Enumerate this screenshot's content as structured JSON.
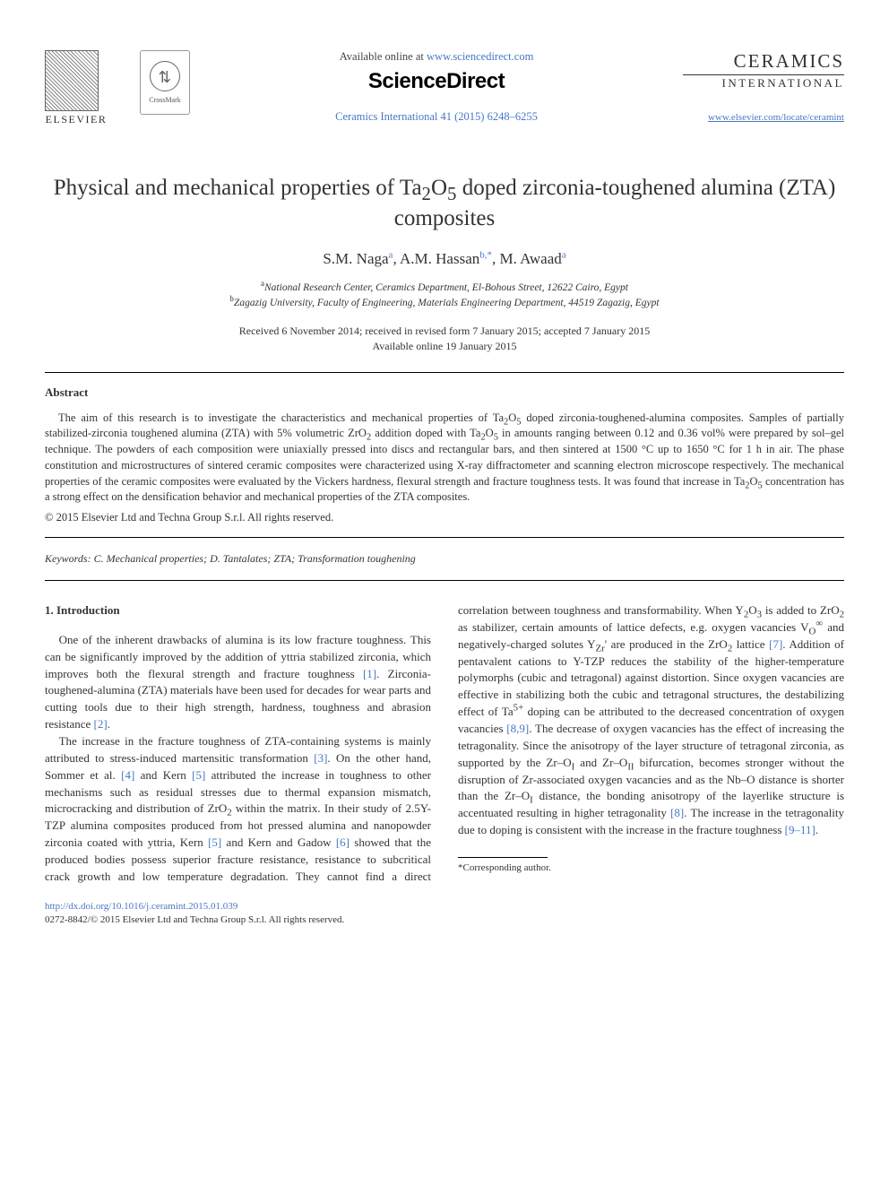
{
  "header": {
    "elsevier_label": "ELSEVIER",
    "crossmark_label": "CrossMark",
    "available_online_prefix": "Available online at ",
    "available_online_url": "www.sciencedirect.com",
    "sciencedirect": "ScienceDirect",
    "journal_reference": "Ceramics International 41 (2015) 6248–6255",
    "ceramics_title": "CERAMICS",
    "ceramics_sub": "INTERNATIONAL",
    "journal_link": "www.elsevier.com/locate/ceramint"
  },
  "article": {
    "title_html": "Physical and mechanical properties of Ta<sub>2</sub>O<sub>5</sub> doped zirconia-toughened alumina (ZTA) composites",
    "authors_html": "S.M. Naga<sup class=\"aff-link\">a</sup>, A.M. Hassan<sup class=\"aff-link\">b,</sup><sup class=\"corr\">*</sup>, M. Awaad<sup class=\"aff-link\">a</sup>",
    "affiliations": [
      "<sup>a</sup>National Research Center, Ceramics Department, El-Bohous Street, 12622 Cairo, Egypt",
      "<sup>b</sup>Zagazig University, Faculty of Engineering, Materials Engineering Department, 44519 Zagazig, Egypt"
    ],
    "dates_line1": "Received 6 November 2014; received in revised form 7 January 2015; accepted 7 January 2015",
    "dates_line2": "Available online 19 January 2015"
  },
  "abstract": {
    "heading": "Abstract",
    "body_html": "The aim of this research is to investigate the characteristics and mechanical properties of Ta<sub>2</sub>O<sub>5</sub> doped zirconia-toughened-alumina composites. Samples of partially stabilized-zirconia toughened alumina (ZTA) with 5% volumetric ZrO<sub>2</sub> addition doped with Ta<sub>2</sub>O<sub>5</sub> in amounts ranging between 0.12 and 0.36 vol% were prepared by sol–gel technique. The powders of each composition were uniaxially pressed into discs and rectangular bars, and then sintered at 1500 °C up to 1650 °C for 1 h in air. The phase constitution and microstructures of sintered ceramic composites were characterized using X-ray diffractometer and scanning electron microscope respectively. The mechanical properties of the ceramic composites were evaluated by the Vickers hardness, flexural strength and fracture toughness tests. It was found that increase in Ta<sub>2</sub>O<sub>5</sub> concentration has a strong effect on the densification behavior and mechanical properties of the ZTA composites.",
    "copyright": "© 2015 Elsevier Ltd and Techna Group S.r.l. All rights reserved."
  },
  "keywords": {
    "label": "Keywords:",
    "text": " C. Mechanical properties; D. Tantalates; ZTA; Transformation toughening"
  },
  "introduction": {
    "heading": "1. Introduction",
    "paragraphs_html": [
      "One of the inherent drawbacks of alumina is its low fracture toughness. This can be significantly improved by the addition of yttria stabilized zirconia, which improves both the flexural strength and fracture toughness <span class=\"ref-link\">[1]</span>. Zirconia-toughened-alumina (ZTA) materials have been used for decades for wear parts and cutting tools due to their high strength, hardness, toughness and abrasion resistance <span class=\"ref-link\">[2]</span>.",
      "The increase in the fracture toughness of ZTA-containing systems is mainly attributed to stress-induced martensitic transformation <span class=\"ref-link\">[3]</span>. On the other hand, Sommer et al. <span class=\"ref-link\">[4]</span> and Kern <span class=\"ref-link\">[5]</span> attributed the increase in toughness to other mechanisms such as residual stresses due to thermal expansion mismatch, microcracking and distribution of ZrO<sub>2</sub> within the matrix. In their study of 2.5Y-TZP alumina composites produced from hot pressed alumina and nanopowder zirconia coated with yttria, Kern <span class=\"ref-link\">[5]</span> and Kern and Gadow <span class=\"ref-link\">[6]</span> showed that the produced bodies possess superior fracture resistance, resistance to subcritical crack growth and low temperature degradation. They cannot find a direct correlation between toughness and transformability. When Y<sub>2</sub>O<sub>3</sub> is added to ZrO<sub>2</sub> as stabilizer, certain amounts of lattice defects, e.g. oxygen vacancies V<sub>O</sub><sup>∞</sup> and negatively-charged solutes Y<sub>Zr</sub>' are produced in the ZrO<sub>2</sub> lattice <span class=\"ref-link\">[7]</span>. Addition of pentavalent cations to Y-TZP reduces the stability of the higher-temperature polymorphs (cubic and tetragonal) against distortion. Since oxygen vacancies are effective in stabilizing both the cubic and tetragonal structures, the destabilizing effect of Ta<sup>5+</sup> doping can be attributed to the decreased concentration of oxygen vacancies <span class=\"ref-link\">[8,9]</span>. The decrease of oxygen vacancies has the effect of increasing the tetragonality. Since the anisotropy of the layer structure of tetragonal zirconia, as supported by the Zr–O<sub>I</sub> and Zr–O<sub>II</sub> bifurcation, becomes stronger without the disruption of Zr-associated oxygen vacancies and as the Nb–O distance is shorter than the Zr–O<sub>I</sub> distance, the bonding anisotropy of the layerlike structure is accentuated resulting in higher tetragonality <span class=\"ref-link\">[8]</span>. The increase in the tetragonality due to doping is consistent with the increase in the fracture toughness <span class=\"ref-link\">[9–11]</span>."
    ]
  },
  "footnote": {
    "corresponding": "*Corresponding author."
  },
  "footer": {
    "doi": "http://dx.doi.org/10.1016/j.ceramint.2015.01.039",
    "issn_copyright": "0272-8842/© 2015 Elsevier Ltd and Techna Group S.r.l. All rights reserved."
  },
  "colors": {
    "link": "#4878c0",
    "text": "#333333",
    "rule": "#000000",
    "background": "#ffffff"
  }
}
